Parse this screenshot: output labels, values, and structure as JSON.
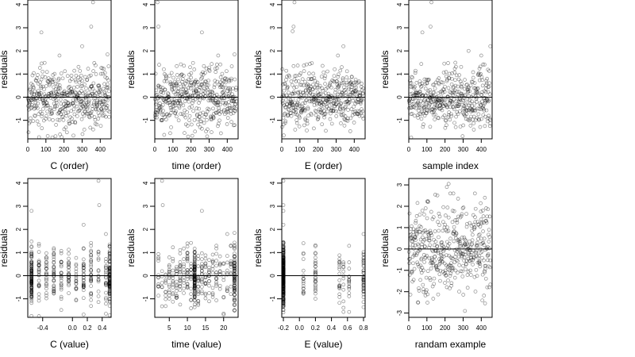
{
  "chart_data": [
    {
      "type": "scatter",
      "xlabel": "C (order)",
      "ylabel": "residuals",
      "xlim": [
        0,
        460
      ],
      "ylim": [
        -1.8,
        4.2
      ],
      "xticks": [
        0,
        100,
        200,
        300,
        400
      ],
      "xtick_labels": [
        "0",
        "100",
        "200",
        "300",
        "400"
      ],
      "yticks": [
        -1,
        0,
        1,
        2,
        3,
        4
      ],
      "ytick_labels": [
        "-1",
        "0",
        "1",
        "2",
        "3",
        "4"
      ],
      "hline": 0,
      "x_kind": "index",
      "y_dist": "resid",
      "outliers": [
        {
          "x": 75,
          "y": 2.8
        },
        {
          "x": 175,
          "y": 1.8
        },
        {
          "x": 350,
          "y": 3.05
        },
        {
          "x": 360,
          "y": 4.1
        },
        {
          "x": 300,
          "y": 2.2
        },
        {
          "x": 440,
          "y": 1.85
        }
      ]
    },
    {
      "type": "scatter",
      "xlabel": "time (order)",
      "ylabel": "residuals",
      "xlim": [
        0,
        460
      ],
      "ylim": [
        -1.8,
        4.2
      ],
      "xticks": [
        0,
        100,
        200,
        300,
        400
      ],
      "xtick_labels": [
        "0",
        "100",
        "200",
        "300",
        "400"
      ],
      "yticks": [
        -1,
        0,
        1,
        2,
        3,
        4
      ],
      "ytick_labels": [
        "-1",
        "0",
        "1",
        "2",
        "3",
        "4"
      ],
      "hline": 0,
      "x_kind": "index",
      "y_dist": "resid",
      "outliers": [
        {
          "x": 15,
          "y": 4.1
        },
        {
          "x": 20,
          "y": 3.05
        },
        {
          "x": 260,
          "y": 2.8
        },
        {
          "x": 350,
          "y": 1.8
        },
        {
          "x": 440,
          "y": 1.85
        }
      ]
    },
    {
      "type": "scatter",
      "xlabel": "E (order)",
      "ylabel": "residuals",
      "xlim": [
        0,
        460
      ],
      "ylim": [
        -1.8,
        4.2
      ],
      "xticks": [
        0,
        100,
        200,
        300,
        400
      ],
      "xtick_labels": [
        "0",
        "100",
        "200",
        "300",
        "400"
      ],
      "yticks": [
        -1,
        0,
        1,
        2,
        3,
        4
      ],
      "ytick_labels": [
        "-1",
        "0",
        "1",
        "2",
        "3",
        "4"
      ],
      "hline": 0,
      "x_kind": "index",
      "y_dist": "resid",
      "outliers": [
        {
          "x": 60,
          "y": 2.85
        },
        {
          "x": 65,
          "y": 3.05
        },
        {
          "x": 70,
          "y": 4.1
        },
        {
          "x": 310,
          "y": 1.8
        },
        {
          "x": 340,
          "y": 2.2
        }
      ]
    },
    {
      "type": "scatter",
      "xlabel": "sample index",
      "ylabel": "residuals",
      "xlim": [
        0,
        460
      ],
      "ylim": [
        -1.8,
        4.2
      ],
      "xticks": [
        0,
        100,
        200,
        300,
        400
      ],
      "xtick_labels": [
        "0",
        "100",
        "200",
        "300",
        "400"
      ],
      "yticks": [
        -1,
        0,
        1,
        2,
        3,
        4
      ],
      "ytick_labels": [
        "-1",
        "0",
        "1",
        "2",
        "3",
        "4"
      ],
      "hline": 0,
      "x_kind": "index",
      "y_dist": "resid",
      "outliers": [
        {
          "x": 75,
          "y": 2.8
        },
        {
          "x": 120,
          "y": 3.05
        },
        {
          "x": 125,
          "y": 4.1
        },
        {
          "x": 330,
          "y": 2.0
        },
        {
          "x": 400,
          "y": 1.8
        },
        {
          "x": 450,
          "y": 2.2
        }
      ]
    },
    {
      "type": "scatter",
      "xlabel": "C (value)",
      "ylabel": "residuals",
      "xlim": [
        -0.6,
        0.52
      ],
      "ylim": [
        -1.8,
        4.2
      ],
      "xticks": [
        -0.4,
        0.0,
        0.2,
        0.4
      ],
      "xtick_labels": [
        "-0.4",
        "0.0",
        "0.2",
        "0.4"
      ],
      "yticks": [
        -1,
        0,
        1,
        2,
        3,
        4
      ],
      "ytick_labels": [
        "-1",
        "0",
        "1",
        "2",
        "3",
        "4"
      ],
      "hline": 0,
      "x_kind": "levels",
      "x_levels": [
        -0.55,
        -0.45,
        -0.35,
        -0.25,
        -0.15,
        -0.05,
        0.05,
        0.15,
        0.25,
        0.35,
        0.45,
        0.5
      ],
      "y_dist": "resid",
      "dense_levels": [
        -0.55,
        0.5
      ],
      "outliers": [
        {
          "x": -0.55,
          "y": 2.8
        },
        {
          "x": 0.35,
          "y": 4.1
        },
        {
          "x": 0.36,
          "y": 3.05
        },
        {
          "x": 0.15,
          "y": 2.2
        },
        {
          "x": 0.45,
          "y": 1.8
        }
      ]
    },
    {
      "type": "scatter",
      "xlabel": "time (value)",
      "ylabel": "residuals",
      "xlim": [
        1,
        24
      ],
      "ylim": [
        -1.8,
        4.2
      ],
      "xticks": [
        5,
        10,
        15,
        20
      ],
      "xtick_labels": [
        "5",
        "10",
        "15",
        "20"
      ],
      "yticks": [
        -1,
        0,
        1,
        2,
        3,
        4
      ],
      "ytick_labels": [
        "-1",
        "0",
        "1",
        "2",
        "3",
        "4"
      ],
      "hline": 0,
      "x_kind": "levels",
      "x_levels": [
        2,
        3,
        4,
        5,
        6,
        7,
        8,
        9,
        10,
        11,
        12,
        13,
        14,
        15,
        16,
        17,
        18,
        19,
        20,
        21,
        22,
        23
      ],
      "y_dist": "resid",
      "dense_levels": [
        12,
        23
      ],
      "outliers": [
        {
          "x": 3,
          "y": 4.1
        },
        {
          "x": 3.2,
          "y": 3.05
        },
        {
          "x": 14,
          "y": 2.8
        },
        {
          "x": 21,
          "y": 1.8
        },
        {
          "x": 23,
          "y": 1.85
        }
      ]
    },
    {
      "type": "scatter",
      "xlabel": "E (value)",
      "ylabel": "residuals",
      "xlim": [
        -0.22,
        0.82
      ],
      "ylim": [
        -1.8,
        4.2
      ],
      "xticks": [
        -0.2,
        0.0,
        0.2,
        0.4,
        0.6,
        0.8
      ],
      "xtick_labels": [
        "-0.2",
        "0.0",
        "0.2",
        "0.4",
        "0.6",
        "0.8"
      ],
      "yticks": [
        -1,
        0,
        1,
        2,
        3,
        4
      ],
      "ytick_labels": [
        "-1",
        "0",
        "1",
        "2",
        "3",
        "4"
      ],
      "hline": 0,
      "x_kind": "levels",
      "x_levels": [
        -0.2,
        -0.2,
        -0.2,
        -0.2,
        -0.2,
        -0.2,
        -0.2,
        -0.2,
        0.8,
        0.8,
        0.55,
        0.62,
        0.5,
        0.05,
        0.2
      ],
      "y_dist": "resid",
      "dense_levels": [
        -0.2
      ],
      "outliers": [
        {
          "x": -0.2,
          "y": 4.1
        },
        {
          "x": -0.2,
          "y": 3.05
        },
        {
          "x": -0.2,
          "y": 2.8
        },
        {
          "x": 0.8,
          "y": 1.8
        },
        {
          "x": -0.2,
          "y": 2.2
        }
      ]
    },
    {
      "type": "scatter",
      "xlabel": "randam example",
      "ylabel": "residuals",
      "xlim": [
        0,
        460
      ],
      "ylim": [
        -3.2,
        3.3
      ],
      "xticks": [
        0,
        100,
        200,
        300,
        400
      ],
      "xtick_labels": [
        "0",
        "100",
        "200",
        "300",
        "400"
      ],
      "yticks": [
        -3,
        -2,
        -1,
        0,
        1,
        2,
        3
      ],
      "ytick_labels": [
        "-3",
        "-2",
        "-1",
        "0",
        "1",
        "2",
        "3"
      ],
      "hline": 0,
      "x_kind": "index",
      "y_dist": "normal",
      "outliers": [
        {
          "x": 220,
          "y": 3.05
        },
        {
          "x": 210,
          "y": 2.9
        },
        {
          "x": 420,
          "y": 2.4
        },
        {
          "x": 310,
          "y": -2.9
        },
        {
          "x": 50,
          "y": -2.5
        }
      ]
    }
  ]
}
